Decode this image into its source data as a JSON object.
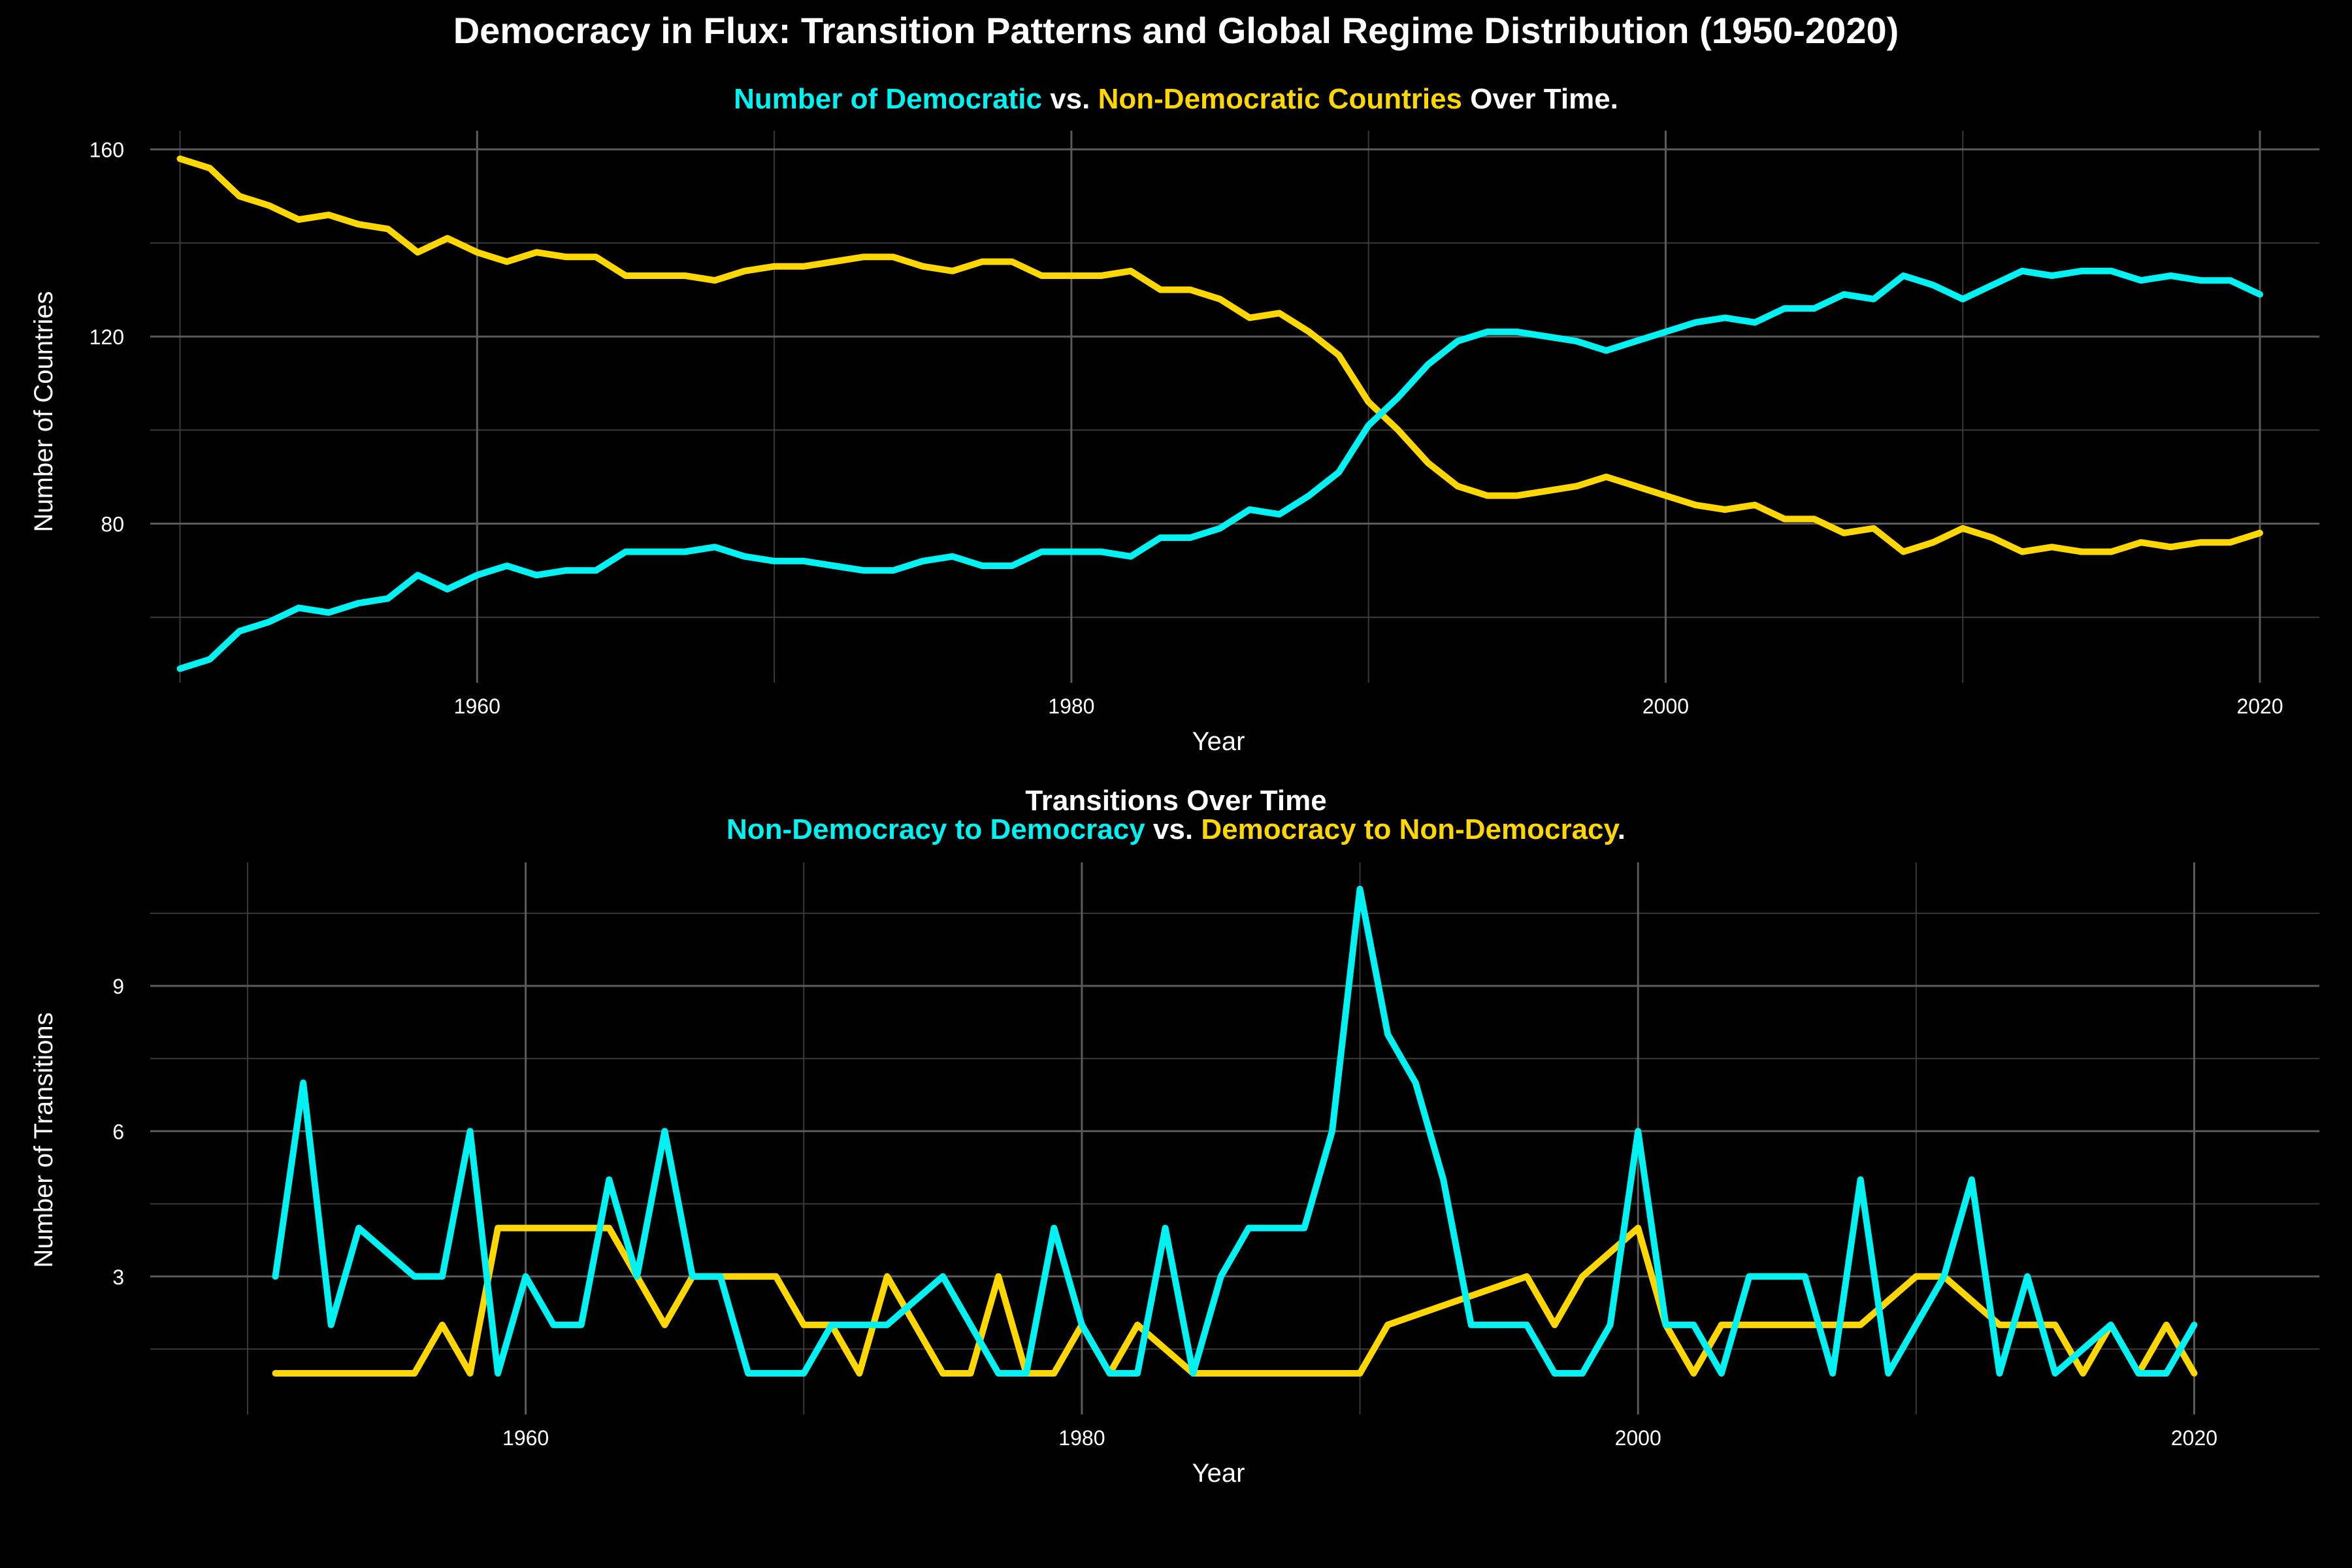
{
  "figure": {
    "title": "Democracy in Flux: Transition Patterns and Global Regime Distribution (1950-2020)"
  },
  "colors": {
    "background": "#000000",
    "democratic": "#00F2F2",
    "non_democratic": "#FFD700",
    "text": "#FFFFFF",
    "grid_major": "#5a5a5a",
    "grid_minor": "#3a3a3a"
  },
  "chart_data": [
    {
      "type": "line",
      "subtitle_parts": [
        {
          "text": "Number of Democratic",
          "color": "democratic"
        },
        {
          "text": " vs. ",
          "color": "text"
        },
        {
          "text": "Non-Democratic Countries",
          "color": "non_democratic"
        },
        {
          "text": " Over Time.",
          "color": "text"
        }
      ],
      "xlabel": "Year",
      "ylabel": "Number of Countries",
      "xlim": [
        1949,
        2022
      ],
      "ylim": [
        46,
        164
      ],
      "xticks": [
        1960,
        1980,
        2000,
        2020
      ],
      "xminor": [
        1950,
        1970,
        1990,
        2010
      ],
      "yticks": [
        80,
        120,
        160
      ],
      "yminor": [
        60,
        100,
        140
      ],
      "grid": true,
      "x": [
        1950,
        1951,
        1952,
        1953,
        1954,
        1955,
        1956,
        1957,
        1958,
        1959,
        1960,
        1961,
        1962,
        1963,
        1964,
        1965,
        1966,
        1967,
        1968,
        1969,
        1970,
        1971,
        1972,
        1973,
        1974,
        1975,
        1976,
        1977,
        1978,
        1979,
        1980,
        1981,
        1982,
        1983,
        1984,
        1985,
        1986,
        1987,
        1988,
        1989,
        1990,
        1991,
        1992,
        1993,
        1994,
        1995,
        1996,
        1997,
        1998,
        1999,
        2000,
        2001,
        2002,
        2003,
        2004,
        2005,
        2006,
        2007,
        2008,
        2009,
        2010,
        2011,
        2012,
        2013,
        2014,
        2015,
        2016,
        2017,
        2018,
        2019,
        2020
      ],
      "series": [
        {
          "name": "Democratic",
          "color": "democratic",
          "values": [
            49,
            51,
            57,
            59,
            62,
            61,
            63,
            64,
            69,
            66,
            69,
            71,
            69,
            70,
            70,
            74,
            74,
            74,
            75,
            73,
            72,
            72,
            71,
            70,
            70,
            72,
            73,
            71,
            71,
            74,
            74,
            74,
            73,
            77,
            77,
            79,
            83,
            82,
            86,
            91,
            101,
            107,
            114,
            119,
            121,
            121,
            120,
            119,
            117,
            119,
            121,
            123,
            124,
            123,
            126,
            126,
            129,
            128,
            133,
            131,
            128,
            131,
            134,
            133,
            134,
            134,
            132,
            133,
            132,
            132,
            129
          ]
        },
        {
          "name": "Non-Democratic",
          "color": "non_democratic",
          "values": [
            158,
            156,
            150,
            148,
            145,
            146,
            144,
            143,
            138,
            141,
            138,
            136,
            138,
            137,
            137,
            133,
            133,
            133,
            132,
            134,
            135,
            135,
            136,
            137,
            137,
            135,
            134,
            136,
            136,
            133,
            133,
            133,
            134,
            130,
            130,
            128,
            124,
            125,
            121,
            116,
            106,
            100,
            93,
            88,
            86,
            86,
            87,
            88,
            90,
            88,
            86,
            84,
            83,
            84,
            81,
            81,
            78,
            79,
            74,
            76,
            79,
            77,
            74,
            75,
            74,
            74,
            76,
            75,
            76,
            76,
            78
          ]
        }
      ]
    },
    {
      "type": "line",
      "title": "Transitions Over Time",
      "subtitle_parts": [
        {
          "text": "Non-Democracy to Democracy",
          "color": "democratic"
        },
        {
          "text": " vs. ",
          "color": "text"
        },
        {
          "text": "Democracy to Non-Democracy",
          "color": "non_democratic"
        },
        {
          "text": ".",
          "color": "text"
        }
      ],
      "xlabel": "Year",
      "ylabel": "Number of Transitions",
      "xlim": [
        1946.5,
        2024.5
      ],
      "ylim": [
        0.15,
        11.55
      ],
      "xticks": [
        1960,
        1980,
        2000,
        2020
      ],
      "xminor": [
        1950,
        1970,
        1990,
        2010
      ],
      "yticks": [
        3,
        6,
        9
      ],
      "yminor": [
        1.5,
        4.5,
        7.5,
        10.5
      ],
      "grid": true,
      "x": [
        1951,
        1952,
        1953,
        1954,
        1955,
        1956,
        1957,
        1958,
        1959,
        1960,
        1961,
        1962,
        1963,
        1964,
        1965,
        1966,
        1967,
        1968,
        1969,
        1970,
        1971,
        1972,
        1973,
        1974,
        1975,
        1976,
        1977,
        1978,
        1979,
        1980,
        1981,
        1982,
        1983,
        1984,
        1985,
        1986,
        1987,
        1988,
        1989,
        1990,
        1991,
        1992,
        1993,
        1994,
        1995,
        1996,
        1997,
        1998,
        1999,
        2000,
        2001,
        2002,
        2003,
        2004,
        2005,
        2006,
        2007,
        2008,
        2009,
        2010,
        2011,
        2012,
        2013,
        2014,
        2015,
        2016,
        2017,
        2018,
        2019,
        2020
      ],
      "series": [
        {
          "name": "Non-Democracy to Democracy",
          "color": "democratic",
          "values": [
            3,
            7,
            2,
            4,
            3.5,
            3,
            3,
            6,
            1,
            3,
            2,
            2,
            5,
            3,
            6,
            3,
            3,
            1,
            1,
            1,
            2,
            2,
            2,
            2.5,
            3,
            2,
            1,
            1,
            4,
            2,
            1,
            1,
            4,
            1,
            3,
            4,
            4,
            4,
            6,
            11,
            8,
            7,
            5,
            2,
            2,
            2,
            1,
            1,
            2,
            6,
            2,
            2,
            1,
            3,
            3,
            3,
            1,
            5,
            1,
            2,
            3,
            5,
            1,
            3,
            1,
            1.5,
            2,
            1,
            1,
            2
          ]
        },
        {
          "name": "Democracy to Non-Democracy",
          "color": "non_democratic",
          "values": [
            1,
            1,
            1,
            1,
            1,
            1,
            2,
            1,
            4,
            4,
            4,
            4,
            4,
            3,
            2,
            3,
            3,
            3,
            3,
            2,
            2,
            1,
            3,
            2,
            1,
            1,
            3,
            1,
            1,
            2,
            1,
            2,
            1.5,
            1,
            1,
            1,
            1,
            1,
            1,
            1,
            2,
            2.2,
            2.4,
            2.6,
            2.8,
            3,
            2,
            3,
            3.5,
            4,
            2,
            1,
            2,
            2,
            2,
            2,
            2,
            2,
            2.5,
            3,
            3,
            2.5,
            2,
            2,
            2,
            1,
            2,
            1,
            2,
            1
          ]
        }
      ]
    }
  ]
}
